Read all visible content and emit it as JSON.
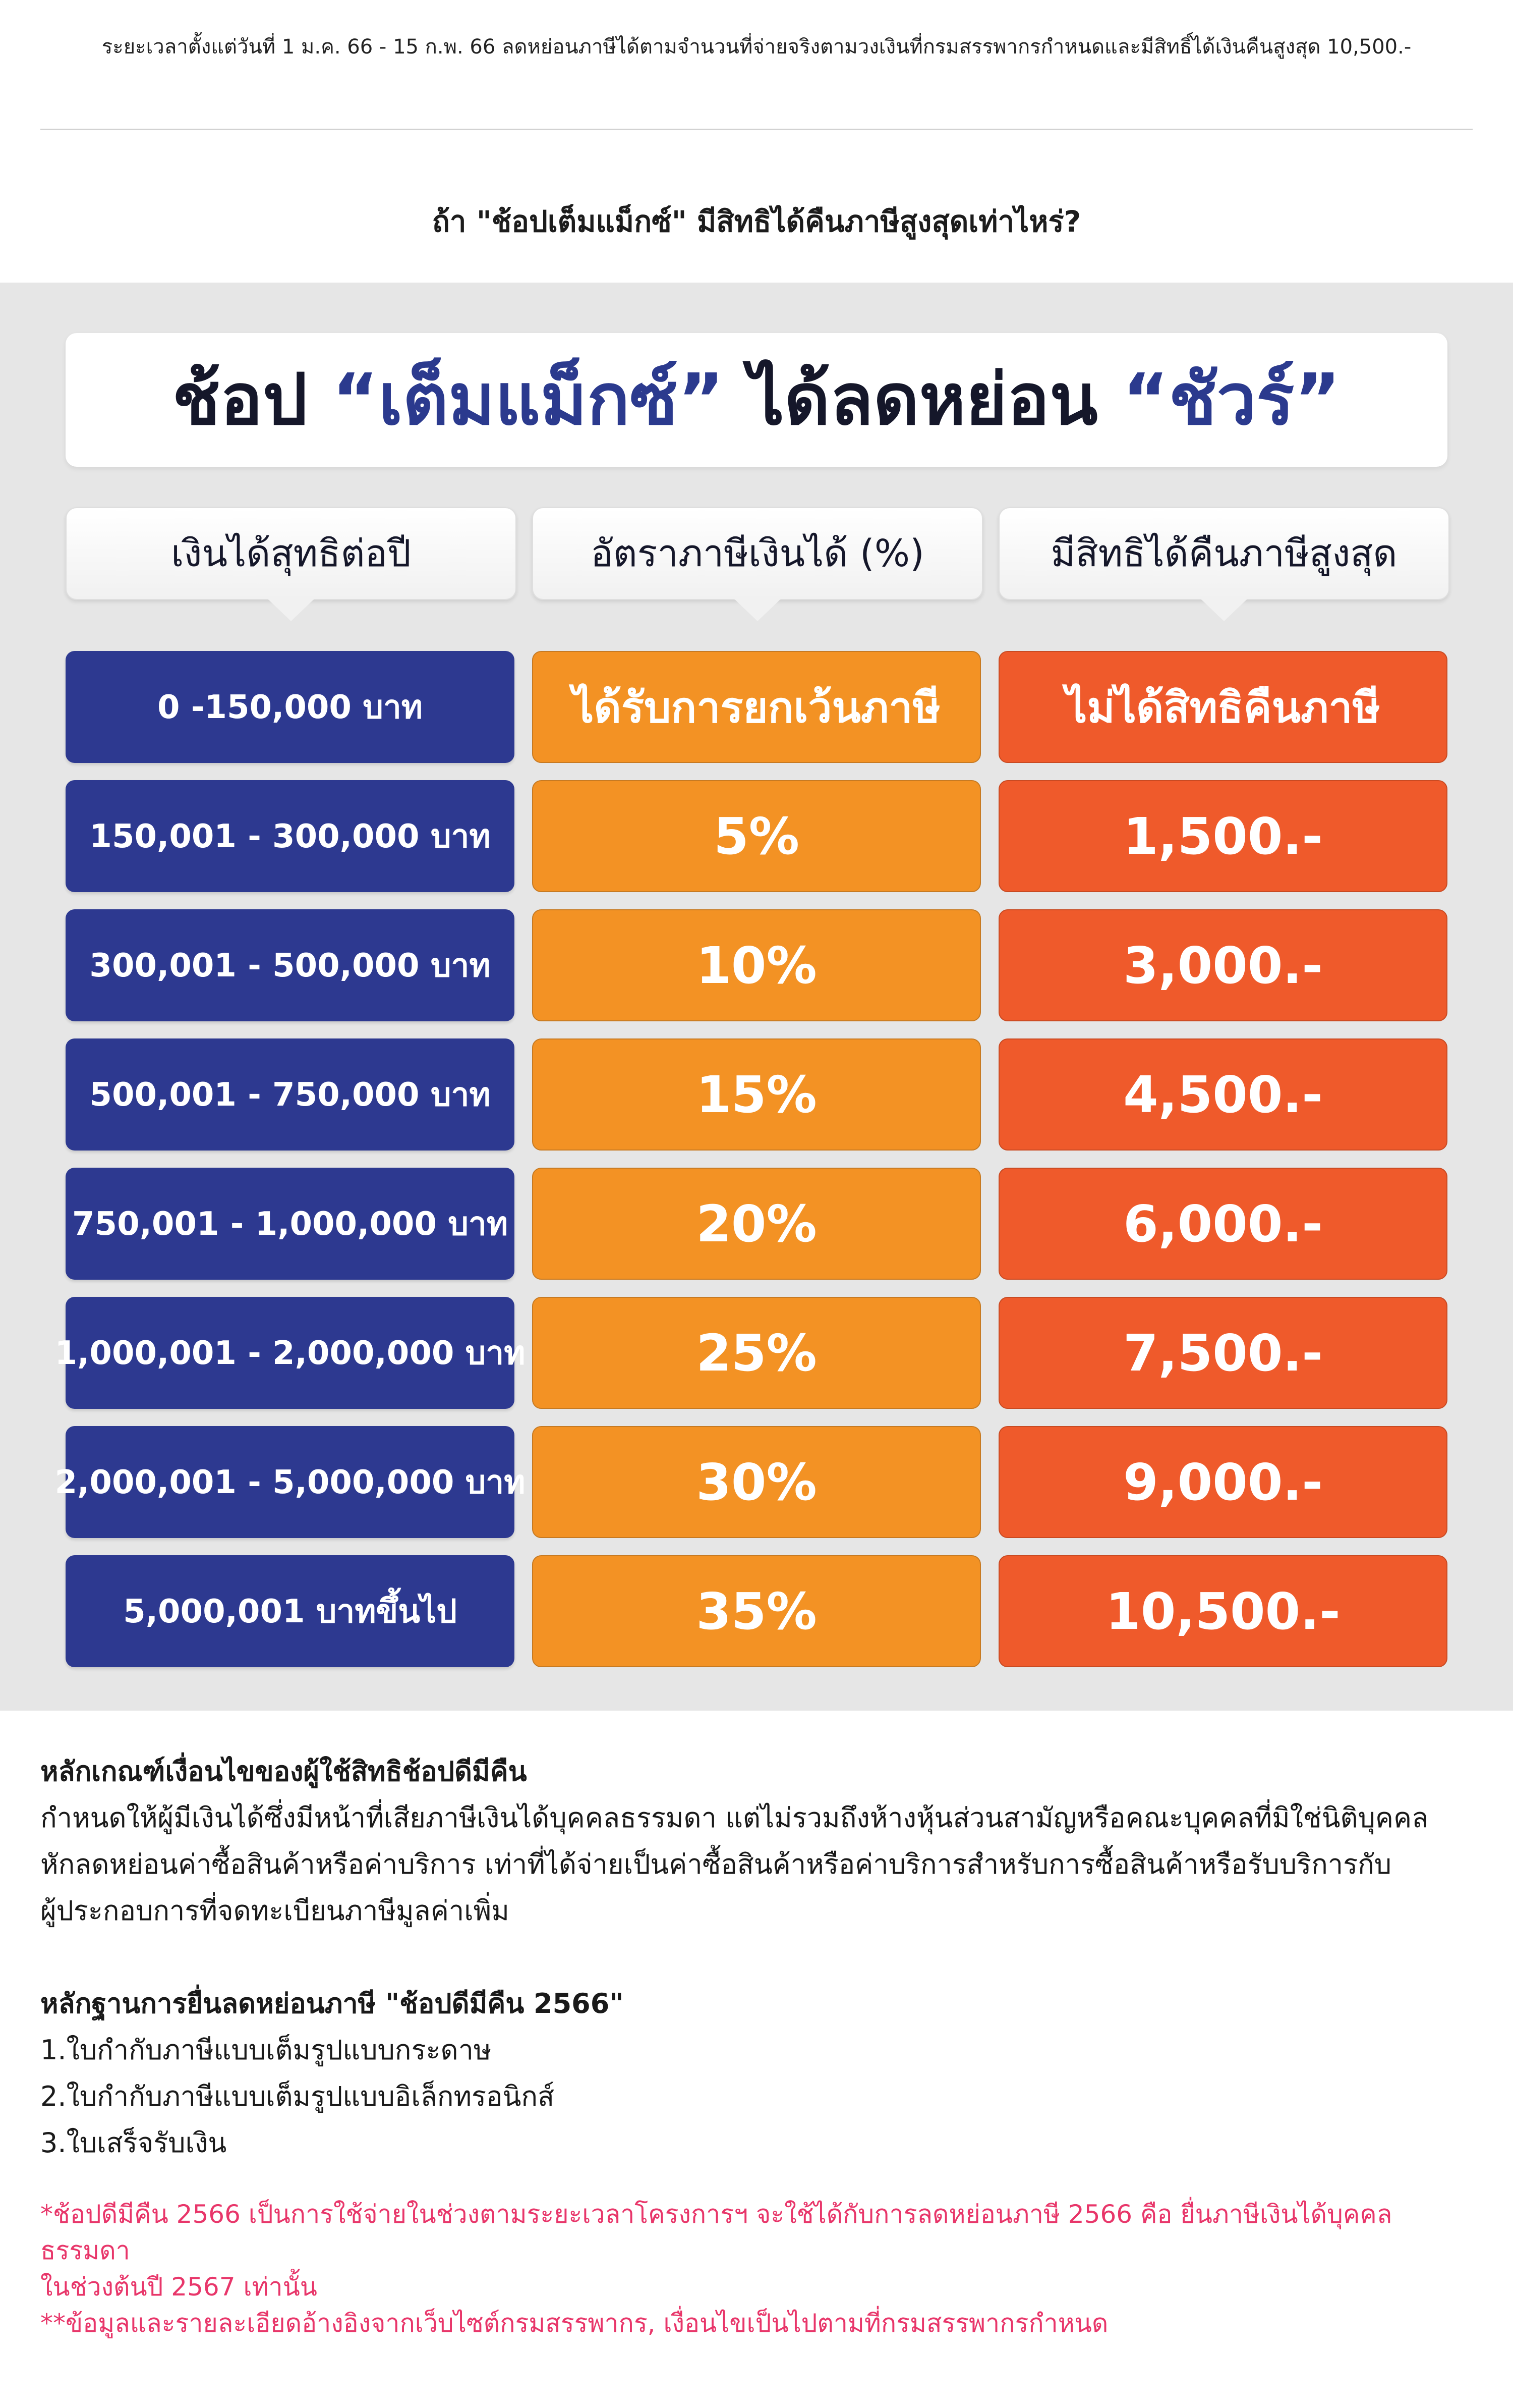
{
  "header": {
    "period_text": "ระยะเวลาตั้งแต่วันที่ 1  ม.ค. 66 - 15  ก.พ. 66 ลดหย่อนภาษีได้ตามจำนวนที่จ่ายจริงตามวงเงินที่กรมสรรพากรกำหนดและมีสิทธิ์ได้เงินคืนสูงสุด 10,500.-",
    "question": "ถ้า \"ช้อปเต็มแม็กซ์\" มีสิทธิได้คืนภาษีสูงสุดเท่าไหร่?"
  },
  "banner": {
    "part1": "ช้อป ",
    "accent1": "“เต็มแม็กซ์”",
    "part2": " ได้ลดหย่อน ",
    "accent2": "“ชัวร์”"
  },
  "columns": {
    "income": "เงินได้สุทธิต่อปี",
    "rate": "อัตราภาษีเงินได้ (%)",
    "refund": "มีสิทธิได้คืนภาษีสูงสุด"
  },
  "rows": [
    {
      "income": "0 -150,000 บาท",
      "rate": "ได้รับการยกเว้นภาษี",
      "refund": "ไม่ได้สิทธิคืนภาษี"
    },
    {
      "income": "150,001 - 300,000 บาท",
      "rate": "5%",
      "refund": "1,500.-"
    },
    {
      "income": "300,001 - 500,000 บาท",
      "rate": "10%",
      "refund": "3,000.-"
    },
    {
      "income": "500,001 - 750,000 บาท",
      "rate": "15%",
      "refund": "4,500.-"
    },
    {
      "income": "750,001 - 1,000,000 บาท",
      "rate": "20%",
      "refund": "6,000.-"
    },
    {
      "income": "1,000,001 - 2,000,000 บาท",
      "rate": "25%",
      "refund": "7,500.-"
    },
    {
      "income": "2,000,001 - 5,000,000 บาท",
      "rate": "30%",
      "refund": "9,000.-"
    },
    {
      "income": "5,000,001 บาทขึ้นไป",
      "rate": "35%",
      "refund": "10,500.-"
    }
  ],
  "criteria": {
    "title": "หลักเกณฑ์เงื่อนไขของผู้ใช้สิทธิช้อปดีมีคืน",
    "lines": [
      "กำหนดให้ผู้มีเงินได้ซึ่งมีหน้าที่เสียภาษีเงินได้บุคคลธรรมดา แต่ไม่รวมถึงห้างหุ้นส่วนสามัญหรือคณะบุคคลที่มิใช่นิติบุคคล",
      "หักลดหย่อนค่าซื้อสินค้าหรือค่าบริการ เท่าที่ได้จ่ายเป็นค่าซื้อสินค้าหรือค่าบริการสำหรับการซื้อสินค้าหรือรับบริการกับ",
      "ผู้ประกอบการที่จดทะเบียนภาษีมูลค่าเพิ่ม"
    ]
  },
  "evidence": {
    "title": "หลักฐานการยื่นลดหย่อนภาษี \"ช้อปดีมีคืน 2566\"",
    "items": [
      "1.ใบกำกับภาษีแบบเต็มรูปแบบกระดาษ",
      "2.ใบกำกับภาษีแบบเต็มรูปแบบอิเล็กทรอนิกส์",
      "3.ใบเสร็จรับเงิน"
    ]
  },
  "disclaimer": {
    "line1": "*ช้อปดีมีคืน 2566 เป็นการใช้จ่ายในช่วงตามระยะเวลาโครงการฯ จะใช้ได้กับการลดหย่อนภาษี 2566 คือ ยื่นภาษีเงินได้บุคคลธรรมดา",
    "line2": "ในช่วงต้นปี 2567 เท่านั้น",
    "line3": "**ข้อมูลและรายละเอียดอ้างอิงจากเว็บไซต์กรมสรรพากร, เงื่อนไขเป็นไปตามที่กรมสรรพากรกำหนด"
  },
  "colors": {
    "navy": "#2d3990",
    "orange": "#f39224",
    "red_orange": "#ef5a2b",
    "accent_blue": "#2b3a8e",
    "disclaimer_pink": "#e8366a",
    "panel_gray": "#e6e6e6"
  }
}
